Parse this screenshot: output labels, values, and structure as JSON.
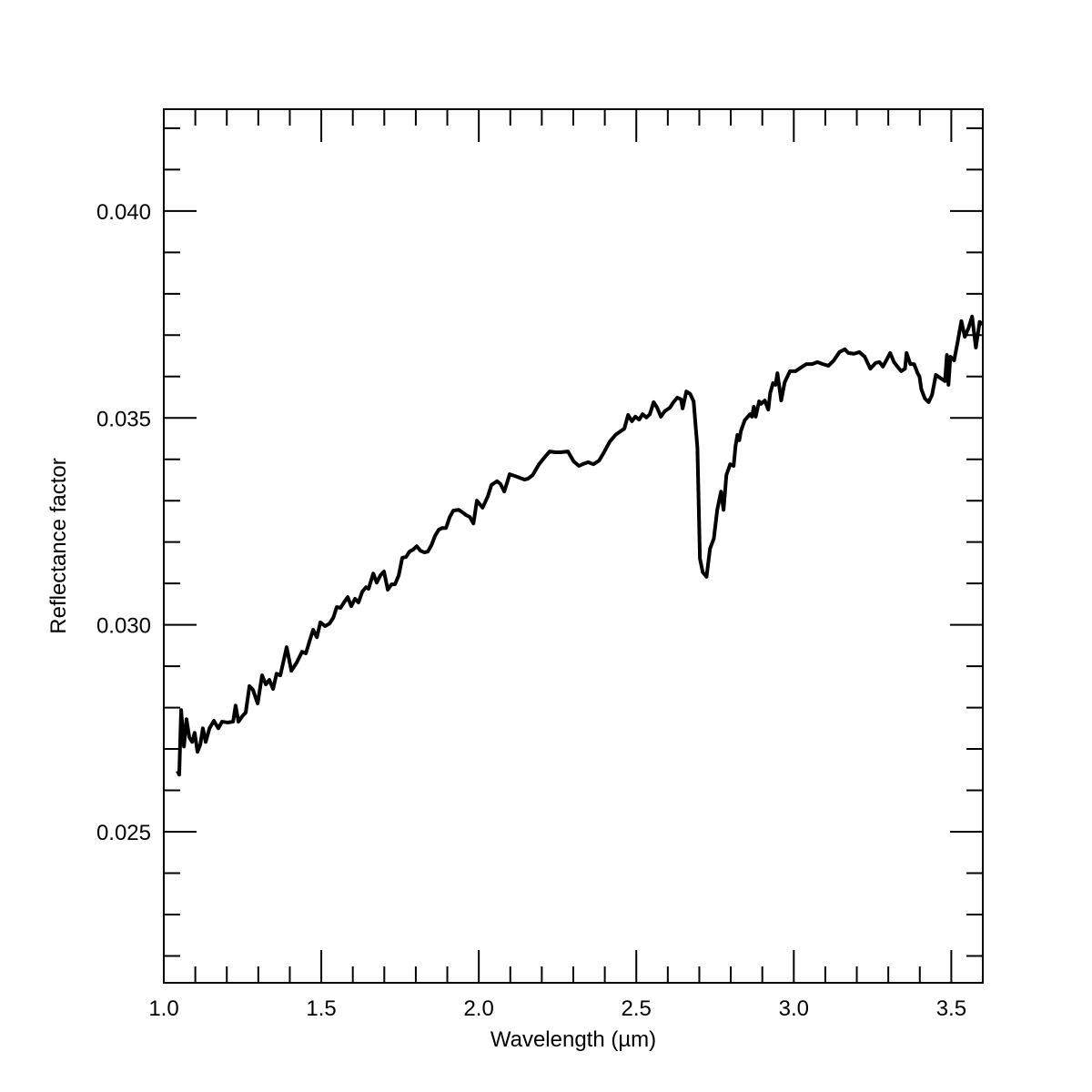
{
  "chart_data": {
    "type": "line",
    "xlabel": "Wavelength (µm)",
    "ylabel": "Reflectance factor",
    "color": "#000000",
    "xlim": [
      1.0,
      3.6
    ],
    "ylim": [
      0.02135,
      0.04246
    ],
    "xticks": [
      {
        "value": 1,
        "label": "1.0"
      },
      1.5,
      {
        "value": 2,
        "label": "2.0"
      },
      2.5,
      {
        "value": 3,
        "label": "3.0"
      },
      3.5
    ],
    "yticks": [
      0.025,
      {
        "value": 0.03,
        "label": "0.030"
      },
      0.035,
      {
        "value": 0.04,
        "label": "0.040"
      }
    ],
    "xminorticks": [
      1.1,
      1.2,
      1.3,
      1.4,
      1.6,
      1.7,
      1.8,
      1.9,
      2.1,
      2.2,
      2.3,
      2.4,
      2.6,
      2.7,
      2.8,
      2.9,
      3.1,
      3.2,
      3.3,
      3.4
    ],
    "yminorticks": [
      0.022,
      0.023,
      0.024,
      0.026,
      0.027,
      0.028,
      0.029,
      0.031,
      0.032,
      0.033,
      0.034,
      0.036,
      0.037,
      0.038,
      0.039,
      0.041,
      0.042
    ],
    "x": [
      1.043,
      1.049,
      1.055,
      1.064,
      1.072,
      1.081,
      1.09,
      1.098,
      1.107,
      1.116,
      1.124,
      1.133,
      1.145,
      1.159,
      1.173,
      1.185,
      1.202,
      1.22,
      1.228,
      1.237,
      1.249,
      1.26,
      1.272,
      1.283,
      1.298,
      1.312,
      1.324,
      1.335,
      1.347,
      1.358,
      1.37,
      1.39,
      1.405,
      1.422,
      1.439,
      1.451,
      1.462,
      1.474,
      1.486,
      1.497,
      1.512,
      1.526,
      1.538,
      1.549,
      1.561,
      1.572,
      1.584,
      1.595,
      1.607,
      1.618,
      1.63,
      1.642,
      1.65,
      1.665,
      1.676,
      1.688,
      1.699,
      1.711,
      1.723,
      1.734,
      1.746,
      1.757,
      1.769,
      1.78,
      1.792,
      1.803,
      1.815,
      1.827,
      1.838,
      1.85,
      1.861,
      1.873,
      1.884,
      1.896,
      1.908,
      1.919,
      1.936,
      1.948,
      1.96,
      1.971,
      1.983,
      1.994,
      2.012,
      2.029,
      2.04,
      2.058,
      2.069,
      2.081,
      2.098,
      2.121,
      2.145,
      2.156,
      2.171,
      2.191,
      2.208,
      2.225,
      2.243,
      2.26,
      2.283,
      2.301,
      2.318,
      2.329,
      2.347,
      2.364,
      2.382,
      2.399,
      2.416,
      2.434,
      2.445,
      2.462,
      2.474,
      2.486,
      2.497,
      2.509,
      2.52,
      2.532,
      2.543,
      2.555,
      2.566,
      2.578,
      2.59,
      2.607,
      2.618,
      2.63,
      2.642,
      2.647,
      2.659,
      2.671,
      2.682,
      2.694,
      2.702,
      2.711,
      2.723,
      2.734,
      2.746,
      2.757,
      2.769,
      2.777,
      2.786,
      2.798,
      2.809,
      2.815,
      2.821,
      2.827,
      2.832,
      2.844,
      2.861,
      2.867,
      2.873,
      2.879,
      2.89,
      2.896,
      2.908,
      2.919,
      2.925,
      2.934,
      2.942,
      2.948,
      2.96,
      2.971,
      2.988,
      3.006,
      3.023,
      3.04,
      3.058,
      3.075,
      3.092,
      3.11,
      3.127,
      3.145,
      3.162,
      3.173,
      3.191,
      3.208,
      3.225,
      3.243,
      3.26,
      3.272,
      3.283,
      3.295,
      3.306,
      3.318,
      3.329,
      3.341,
      3.353,
      3.358,
      3.37,
      3.382,
      3.393,
      3.399,
      3.405,
      3.416,
      3.428,
      3.439,
      3.451,
      3.468,
      3.48,
      3.486,
      3.491,
      3.497,
      3.509,
      3.52,
      3.532,
      3.543,
      3.555,
      3.566,
      3.578,
      3.59,
      3.6
    ],
    "values": [
      0.02647,
      0.02638,
      0.02794,
      0.02706,
      0.02772,
      0.02728,
      0.02717,
      0.02739,
      0.02693,
      0.02711,
      0.0275,
      0.02717,
      0.0275,
      0.02768,
      0.0275,
      0.02766,
      0.02764,
      0.02766,
      0.02805,
      0.02766,
      0.02779,
      0.02788,
      0.02852,
      0.02843,
      0.0281,
      0.02878,
      0.02856,
      0.02867,
      0.02845,
      0.02882,
      0.02878,
      0.02946,
      0.02889,
      0.02909,
      0.02935,
      0.02931,
      0.02959,
      0.02988,
      0.0297,
      0.03006,
      0.02997,
      0.03003,
      0.03017,
      0.03043,
      0.03041,
      0.03054,
      0.03067,
      0.03045,
      0.03063,
      0.03054,
      0.0308,
      0.03091,
      0.03087,
      0.03124,
      0.03102,
      0.0312,
      0.03129,
      0.03085,
      0.03098,
      0.03098,
      0.0312,
      0.03162,
      0.03164,
      0.03177,
      0.03182,
      0.0319,
      0.03179,
      0.03175,
      0.03177,
      0.03193,
      0.03215,
      0.0323,
      0.03234,
      0.03234,
      0.03261,
      0.03276,
      0.03278,
      0.03272,
      0.03265,
      0.03261,
      0.03245,
      0.033,
      0.03283,
      0.03311,
      0.03338,
      0.03347,
      0.0334,
      0.03322,
      0.03364,
      0.03358,
      0.03351,
      0.03353,
      0.03362,
      0.03388,
      0.03404,
      0.03419,
      0.03417,
      0.03417,
      0.03419,
      0.03395,
      0.03384,
      0.03388,
      0.03393,
      0.03388,
      0.03397,
      0.03419,
      0.03443,
      0.03459,
      0.03465,
      0.03474,
      0.03507,
      0.03492,
      0.03503,
      0.03496,
      0.03509,
      0.03501,
      0.03509,
      0.03538,
      0.03525,
      0.03503,
      0.03516,
      0.03525,
      0.03538,
      0.03549,
      0.03545,
      0.03523,
      0.03564,
      0.03558,
      0.0354,
      0.03428,
      0.0316,
      0.03127,
      0.03116,
      0.03184,
      0.03208,
      0.03278,
      0.03322,
      0.03278,
      0.03362,
      0.03388,
      0.03384,
      0.03432,
      0.03459,
      0.03446,
      0.03468,
      0.03494,
      0.03509,
      0.03503,
      0.03527,
      0.03503,
      0.0354,
      0.03534,
      0.03542,
      0.0352,
      0.0356,
      0.03584,
      0.0358,
      0.03608,
      0.03542,
      0.03586,
      0.03613,
      0.03613,
      0.03622,
      0.0363,
      0.0363,
      0.03635,
      0.0363,
      0.03626,
      0.03639,
      0.03659,
      0.03666,
      0.03657,
      0.03655,
      0.03659,
      0.03648,
      0.03619,
      0.03633,
      0.03635,
      0.03624,
      0.03641,
      0.03657,
      0.03635,
      0.03624,
      0.03613,
      0.03619,
      0.03657,
      0.0363,
      0.0363,
      0.03608,
      0.036,
      0.03569,
      0.03547,
      0.03538,
      0.03556,
      0.03604,
      0.03595,
      0.03589,
      0.03652,
      0.0358,
      0.03648,
      0.03639,
      0.03683,
      0.03734,
      0.03696,
      0.03718,
      0.03745,
      0.0367,
      0.03732,
      0.03727
    ]
  }
}
